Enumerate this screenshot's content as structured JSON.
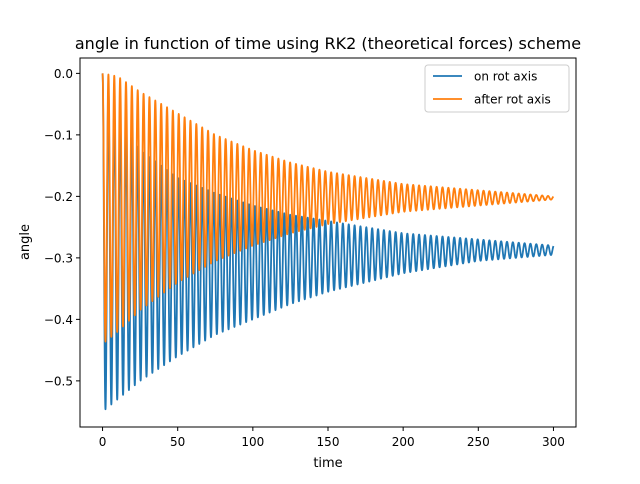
{
  "chart_data": {
    "type": "line",
    "title": "angle in function of time using RK2 (theoretical forces) scheme",
    "xlabel": "time",
    "ylabel": "angle",
    "xlim": [
      -15,
      315
    ],
    "ylim": [
      -0.575,
      0.025
    ],
    "xticks": [
      0,
      50,
      100,
      150,
      200,
      250,
      300
    ],
    "yticks": [
      0.0,
      -0.1,
      -0.2,
      -0.3,
      -0.4,
      -0.5
    ],
    "xtick_labels": [
      "0",
      "50",
      "100",
      "150",
      "200",
      "250",
      "300"
    ],
    "ytick_labels": [
      "0.0",
      "−0.1",
      "−0.2",
      "−0.3",
      "−0.4",
      "−0.5"
    ],
    "grid": false,
    "legend_position": "upper-right",
    "x_range": [
      0,
      300
    ],
    "oscillation_period": 3.9,
    "series": [
      {
        "name": "on rot axis",
        "color": "#1f77b4",
        "envelope_upper": [
          [
            0,
            0.0
          ],
          [
            10,
            -0.07
          ],
          [
            25,
            -0.125
          ],
          [
            50,
            -0.17
          ],
          [
            75,
            -0.195
          ],
          [
            100,
            -0.215
          ],
          [
            125,
            -0.23
          ],
          [
            150,
            -0.24
          ],
          [
            175,
            -0.25
          ],
          [
            200,
            -0.26
          ],
          [
            225,
            -0.265
          ],
          [
            250,
            -0.27
          ],
          [
            275,
            -0.275
          ],
          [
            300,
            -0.28
          ]
        ],
        "envelope_lower": [
          [
            0,
            -0.55
          ],
          [
            10,
            -0.53
          ],
          [
            25,
            -0.5
          ],
          [
            50,
            -0.46
          ],
          [
            75,
            -0.425
          ],
          [
            100,
            -0.4
          ],
          [
            125,
            -0.375
          ],
          [
            150,
            -0.355
          ],
          [
            175,
            -0.34
          ],
          [
            200,
            -0.325
          ],
          [
            225,
            -0.315
          ],
          [
            250,
            -0.305
          ],
          [
            275,
            -0.3
          ],
          [
            300,
            -0.295
          ]
        ]
      },
      {
        "name": "after rot axis",
        "color": "#ff7f0e",
        "envelope_upper": [
          [
            0,
            0.0
          ],
          [
            10,
            -0.005
          ],
          [
            25,
            -0.03
          ],
          [
            50,
            -0.065
          ],
          [
            75,
            -0.1
          ],
          [
            100,
            -0.125
          ],
          [
            125,
            -0.145
          ],
          [
            150,
            -0.16
          ],
          [
            175,
            -0.17
          ],
          [
            200,
            -0.18
          ],
          [
            225,
            -0.185
          ],
          [
            250,
            -0.19
          ],
          [
            275,
            -0.195
          ],
          [
            300,
            -0.2
          ]
        ],
        "envelope_lower": [
          [
            0,
            -0.44
          ],
          [
            10,
            -0.42
          ],
          [
            25,
            -0.385
          ],
          [
            50,
            -0.34
          ],
          [
            75,
            -0.305
          ],
          [
            100,
            -0.28
          ],
          [
            125,
            -0.26
          ],
          [
            150,
            -0.245
          ],
          [
            175,
            -0.235
          ],
          [
            200,
            -0.225
          ],
          [
            225,
            -0.22
          ],
          [
            250,
            -0.215
          ],
          [
            275,
            -0.21
          ],
          [
            300,
            -0.205
          ]
        ]
      }
    ]
  }
}
